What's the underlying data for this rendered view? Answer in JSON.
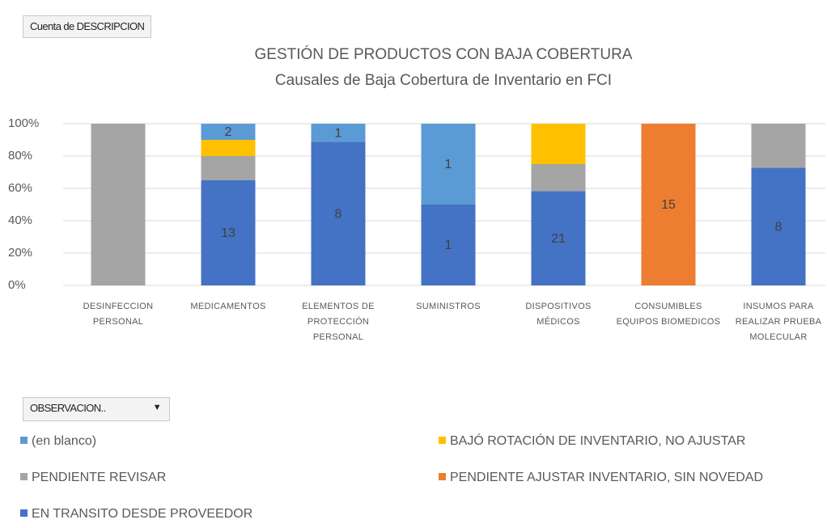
{
  "chart_data": {
    "type": "bar",
    "stacking": "percent",
    "field_button": "Cuenta de DESCRIPCION",
    "title": "GESTIÓN DE PRODUCTOS CON BAJA COBERTURA",
    "subtitle": "Causales de Baja Cobertura de Inventario en FCI",
    "legend_button": "OBSERVACION..",
    "categories": [
      "DESINFECCION PERSONAL",
      "MEDICAMENTOS",
      "ELEMENTOS DE PROTECCIÓN PERSONAL",
      "SUMINISTROS",
      "DISPOSITIVOS MÉDICOS",
      "CONSUMIBLES EQUIPOS BIOMEDICOS",
      "INSUMOS PARA REALIZAR PRUEBA MOLECULAR"
    ],
    "series": [
      {
        "name": "(en blanco)",
        "color": "#5b9bd5",
        "values": [
          null,
          2,
          1,
          1,
          null,
          null,
          null
        ],
        "value_labels": [
          null,
          "2",
          "1",
          "1",
          null,
          null,
          null
        ]
      },
      {
        "name": "BAJÓ ROTACIÓN DE INVENTARIO, NO AJUSTAR",
        "color": "#ffc000",
        "values": [
          null,
          2,
          null,
          null,
          9,
          null,
          null
        ],
        "value_labels": [
          null,
          null,
          null,
          null,
          null,
          null,
          null
        ]
      },
      {
        "name": "PENDIENTE REVISAR",
        "color": "#a5a5a5",
        "values": [
          1,
          3,
          null,
          null,
          6,
          null,
          3
        ],
        "value_labels": [
          null,
          null,
          null,
          null,
          null,
          null,
          null
        ]
      },
      {
        "name": "PENDIENTE AJUSTAR INVENTARIO, SIN NOVEDAD",
        "color": "#ed7d31",
        "values": [
          null,
          null,
          null,
          null,
          null,
          15,
          null
        ],
        "value_labels": [
          null,
          null,
          null,
          null,
          null,
          "15",
          null
        ]
      },
      {
        "name": "EN TRANSITO DESDE PROVEEDOR",
        "color": "#4472c4",
        "values": [
          null,
          13,
          8,
          1,
          21,
          null,
          8
        ],
        "value_labels": [
          null,
          "13",
          "8",
          "1",
          "21",
          null,
          "8"
        ]
      }
    ],
    "ylim": [
      0,
      100
    ],
    "yticks": [
      {
        "value": 0,
        "label": "0%"
      },
      {
        "value": 20,
        "label": "20%"
      },
      {
        "value": 40,
        "label": "40%"
      },
      {
        "value": 60,
        "label": "60%"
      },
      {
        "value": 80,
        "label": "80%"
      },
      {
        "value": 100,
        "label": "100%"
      }
    ],
    "grid": true,
    "legend": "bottom"
  }
}
